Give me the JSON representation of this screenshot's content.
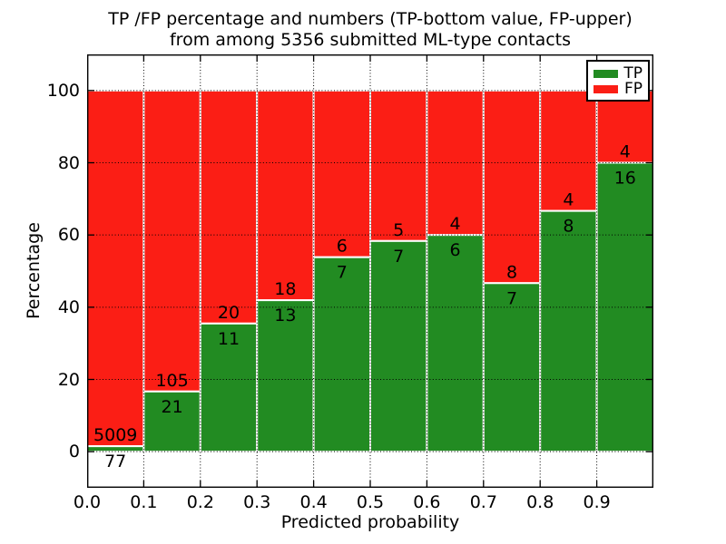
{
  "chart_data": {
    "type": "bar",
    "stacked": true,
    "normalized": "each bin scaled to 100%",
    "title_line1": "TP /FP percentage and numbers (TP-bottom value, FP-upper)",
    "title_line2": "from among 5356 submitted ML-type contacts",
    "xlabel": "Predicted probability",
    "ylabel": "Percentage",
    "bin_width": 0.1,
    "categories": [
      "0.0",
      "0.1",
      "0.2",
      "0.3",
      "0.4",
      "0.5",
      "0.6",
      "0.7",
      "0.8",
      "0.9"
    ],
    "series": [
      {
        "name": "TP",
        "color": "#228b22",
        "values": [
          77,
          21,
          11,
          13,
          7,
          7,
          6,
          7,
          8,
          16
        ]
      },
      {
        "name": "FP",
        "color": "#fb1e15",
        "values": [
          5009,
          105,
          20,
          18,
          6,
          5,
          4,
          8,
          4,
          4
        ]
      }
    ],
    "label_rule": "TP count printed below the green/red boundary, FP count printed above it",
    "xtick_labels": [
      "0.0",
      "0.1",
      "0.2",
      "0.3",
      "0.4",
      "0.5",
      "0.6",
      "0.7",
      "0.8",
      "0.9"
    ],
    "ytick_values": [
      0,
      20,
      40,
      60,
      80,
      100
    ],
    "ylim": [
      -10,
      110
    ],
    "xlim": [
      0.0,
      1.0
    ],
    "grid": "black dotted gridlines drawn above bars",
    "bar_edge_color": "#ffffff",
    "legend": {
      "position": "upper right",
      "items": [
        {
          "label": "TP",
          "color": "#228b22"
        },
        {
          "label": "FP",
          "color": "#fb1e15"
        }
      ]
    }
  }
}
